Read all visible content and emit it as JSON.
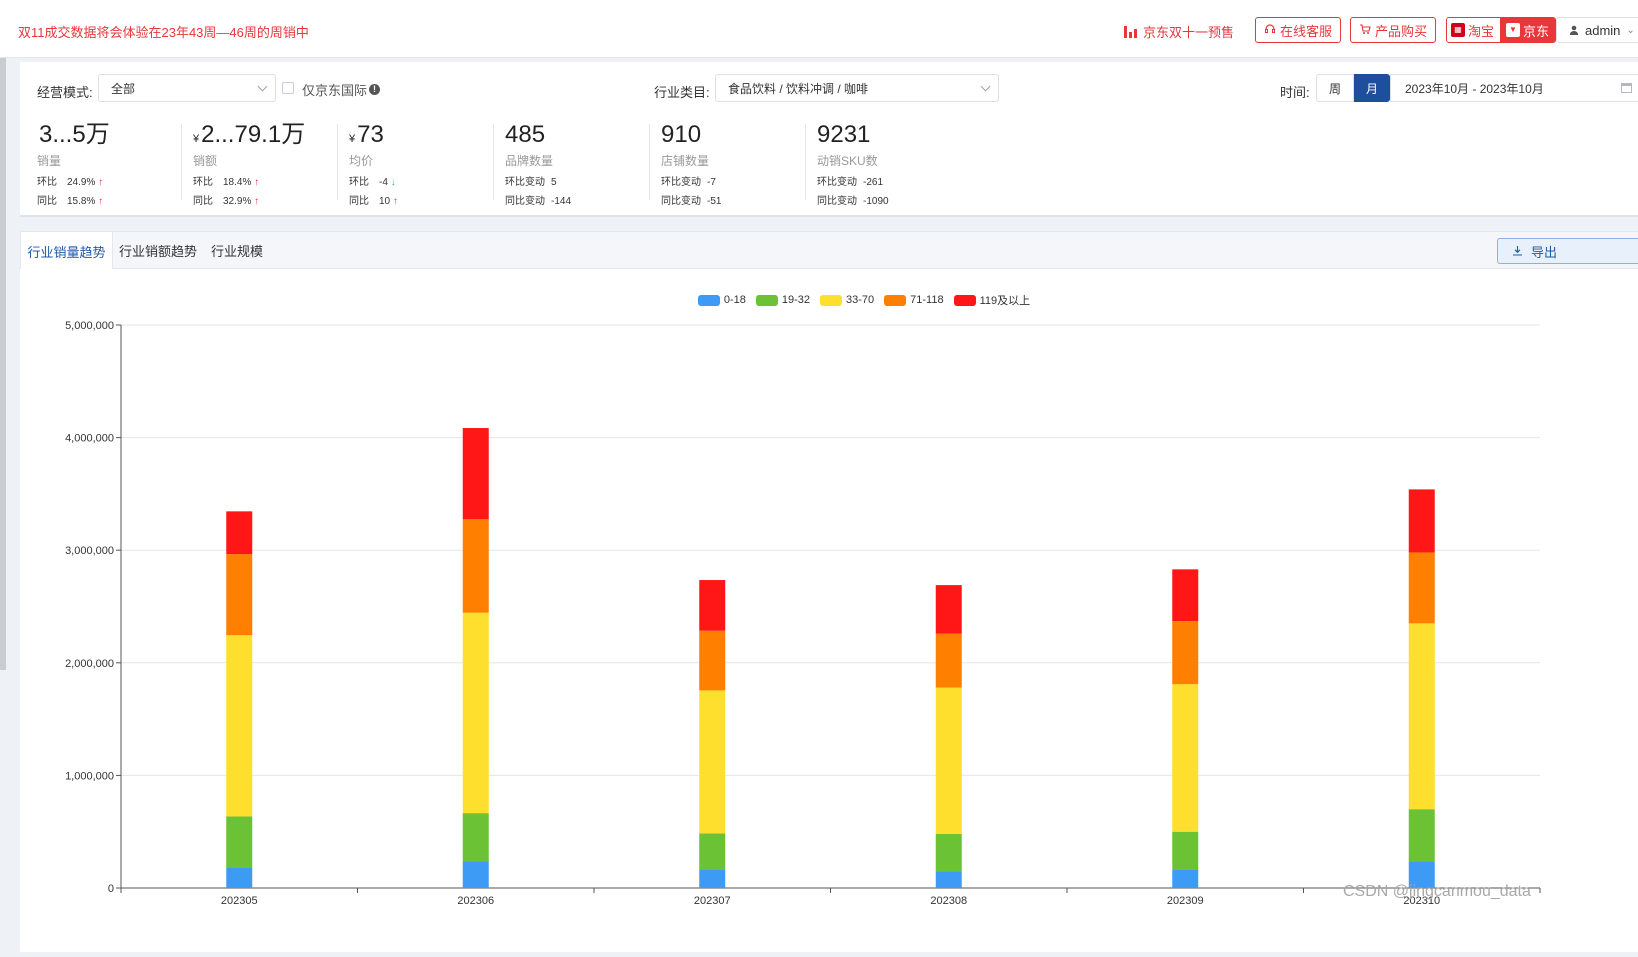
{
  "topbar": {
    "notice": "双11成交数据将会体验在23年43周—46周的周销中",
    "promo": "京东双十一预售",
    "service_button": "在线客服",
    "purchase_button": "产品购买",
    "platform_taobao": "淘宝",
    "platform_jd": "京东",
    "user": "admin"
  },
  "filters": {
    "mode_label": "经营模式:",
    "mode_value": "全部",
    "jd_intl_label": "仅京东国际",
    "industry_label": "行业类目:",
    "industry_value": "食品饮料 / 饮料冲调 / 咖啡",
    "time_label": "时间:",
    "week": "周",
    "month": "月",
    "date_range": "2023年10月 - 2023年10月"
  },
  "kpis": [
    {
      "value": "3...5万",
      "currency": "",
      "name": "销量",
      "r1_label": "环比",
      "r1_value": "24.9%",
      "r1_trend": "↑",
      "r2_label": "同比",
      "r2_value": "15.8%",
      "r2_trend": "↑"
    },
    {
      "value": "2...79.1万",
      "currency": "¥",
      "name": "销额",
      "r1_label": "环比",
      "r1_value": "18.4%",
      "r1_trend": "↑",
      "r2_label": "同比",
      "r2_value": "32.9%",
      "r2_trend": "↑"
    },
    {
      "value": "73",
      "currency": "¥",
      "name": "均价",
      "r1_label": "环比",
      "r1_value": "-4",
      "r1_trend": "↓",
      "r2_label": "同比",
      "r2_value": "10",
      "r2_trend": "↑"
    },
    {
      "value": "485",
      "currency": "",
      "name": "品牌数量",
      "r1_label": "环比变动",
      "r1_value": "5",
      "r1_trend": "",
      "r2_label": "同比变动",
      "r2_value": "-144",
      "r2_trend": ""
    },
    {
      "value": "910",
      "currency": "",
      "name": "店铺数量",
      "r1_label": "环比变动",
      "r1_value": "-7",
      "r1_trend": "",
      "r2_label": "同比变动",
      "r2_value": "-51",
      "r2_trend": ""
    },
    {
      "value": "9231",
      "currency": "",
      "name": "动销SKU数",
      "r1_label": "环比变动",
      "r1_value": "-261",
      "r1_trend": "",
      "r2_label": "同比变动",
      "r2_value": "-1090",
      "r2_trend": ""
    }
  ],
  "tabs": [
    "行业销量趋势",
    "行业销额趋势",
    "行业规模"
  ],
  "export_label": "导出",
  "watermark": "CSDN @jingcanmou_data",
  "colors": {
    "accent": "#1e4f9c",
    "alert": "#e8363a"
  },
  "chart_data": {
    "type": "bar",
    "stacked": true,
    "categories": [
      "202305",
      "202306",
      "202307",
      "202308",
      "202309",
      "202310"
    ],
    "series": [
      {
        "name": "0-18",
        "color": "#3d9bf5",
        "values": [
          185000,
          235000,
          165000,
          150000,
          160000,
          235000
        ]
      },
      {
        "name": "19-32",
        "color": "#6cc235",
        "values": [
          450000,
          430000,
          320000,
          330000,
          340000,
          465000
        ]
      },
      {
        "name": "33-70",
        "color": "#ffdf2e",
        "values": [
          1610000,
          1780000,
          1270000,
          1300000,
          1310000,
          1650000
        ]
      },
      {
        "name": "71-118",
        "color": "#ff7f00",
        "values": [
          720000,
          830000,
          530000,
          480000,
          560000,
          630000
        ]
      },
      {
        "name": "119及以上",
        "color": "#ff1717",
        "values": [
          380000,
          810000,
          450000,
          430000,
          460000,
          560000
        ]
      }
    ],
    "yticks": [
      "0",
      "1,000,000",
      "2,000,000",
      "3,000,000",
      "4,000,000",
      "5,000,000"
    ],
    "ylim": [
      0,
      5000000
    ],
    "legend_position": "top-center",
    "grid": true
  }
}
